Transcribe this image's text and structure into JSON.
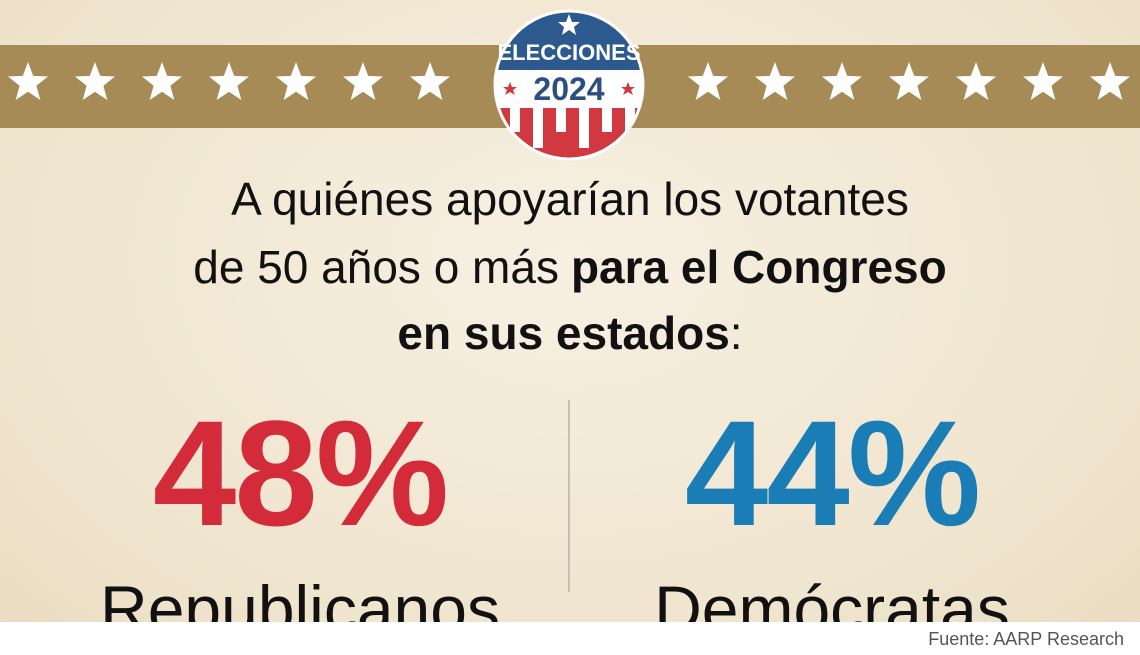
{
  "badge": {
    "top": "ELECCIONES",
    "year": "2024"
  },
  "headline": {
    "lines": [
      [
        {
          "text": "A quiénes apoyarían los votantes",
          "bold": false
        }
      ],
      [
        {
          "text": "de 50 años o más",
          "bold": false
        },
        {
          "text": "para el Congreso",
          "bold": true
        }
      ],
      [
        {
          "text": "en sus estados",
          "bold": true
        },
        {
          "text": ":",
          "bold": false
        }
      ]
    ]
  },
  "stats": [
    {
      "value": "48%",
      "label": "Republicanos",
      "color": "#d42b3b"
    },
    {
      "value": "44%",
      "label": "Demócratas",
      "color": "#1a7db6"
    }
  ],
  "source": "Fuente: AARP Research"
}
